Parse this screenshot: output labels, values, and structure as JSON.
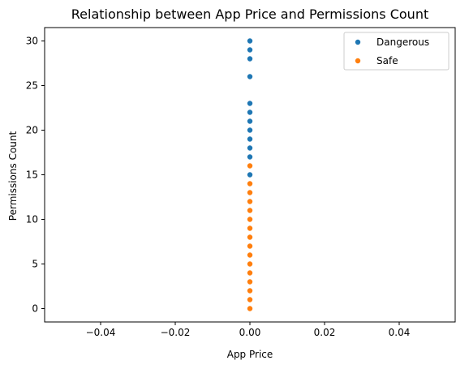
{
  "chart_data": {
    "type": "scatter",
    "title": "Relationship between App Price and Permissions Count",
    "xlabel": "App Price",
    "ylabel": "Permissions Count",
    "xlim": [
      -0.055,
      0.055
    ],
    "ylim": [
      -1.5,
      31.5
    ],
    "x_ticks": [
      -0.04,
      -0.02,
      0.0,
      0.02,
      0.04
    ],
    "x_tick_labels": [
      "−0.04",
      "−0.02",
      "0.00",
      "0.02",
      "0.04"
    ],
    "y_ticks": [
      0,
      5,
      10,
      15,
      20,
      25,
      30
    ],
    "y_tick_labels": [
      "0",
      "5",
      "10",
      "15",
      "20",
      "25",
      "30"
    ],
    "legend_position": "top-right",
    "grid": false,
    "series": [
      {
        "name": "Dangerous",
        "color": "#1f77b4",
        "points": [
          {
            "x": 0,
            "y": 15
          },
          {
            "x": 0,
            "y": 16
          },
          {
            "x": 0,
            "y": 17
          },
          {
            "x": 0,
            "y": 18
          },
          {
            "x": 0,
            "y": 19
          },
          {
            "x": 0,
            "y": 20
          },
          {
            "x": 0,
            "y": 21
          },
          {
            "x": 0,
            "y": 22
          },
          {
            "x": 0,
            "y": 23
          },
          {
            "x": 0,
            "y": 26
          },
          {
            "x": 0,
            "y": 28
          },
          {
            "x": 0,
            "y": 29
          },
          {
            "x": 0,
            "y": 30
          }
        ]
      },
      {
        "name": "Safe",
        "color": "#ff7f0e",
        "points": [
          {
            "x": 0,
            "y": 0
          },
          {
            "x": 0,
            "y": 1
          },
          {
            "x": 0,
            "y": 2
          },
          {
            "x": 0,
            "y": 3
          },
          {
            "x": 0,
            "y": 4
          },
          {
            "x": 0,
            "y": 5
          },
          {
            "x": 0,
            "y": 6
          },
          {
            "x": 0,
            "y": 7
          },
          {
            "x": 0,
            "y": 8
          },
          {
            "x": 0,
            "y": 9
          },
          {
            "x": 0,
            "y": 10
          },
          {
            "x": 0,
            "y": 11
          },
          {
            "x": 0,
            "y": 12
          },
          {
            "x": 0,
            "y": 13
          },
          {
            "x": 0,
            "y": 14
          },
          {
            "x": 0,
            "y": 16
          }
        ]
      }
    ]
  }
}
